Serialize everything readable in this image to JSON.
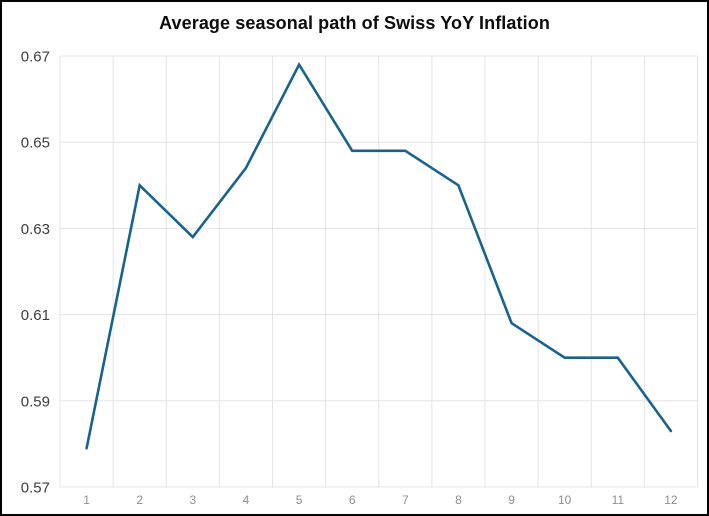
{
  "window": {
    "background": "#ffffff",
    "border_color": "#000000"
  },
  "chart_style": {
    "line_color": "#17638e",
    "grid_color": "#e4e4e4",
    "y_label_color": "#3d3d3d",
    "x_label_color": "#8f8f8f",
    "title_color": "#0d0d0d"
  },
  "chart_data": {
    "type": "line",
    "title": "Average seasonal path of Swiss YoY Inflation",
    "x": [
      1,
      2,
      3,
      4,
      5,
      6,
      7,
      8,
      9,
      10,
      11,
      12
    ],
    "xticklabels": [
      "1",
      "2",
      "3",
      "4",
      "5",
      "6",
      "7",
      "8",
      "9",
      "10",
      "11",
      "12"
    ],
    "values": [
      0.579,
      0.64,
      0.628,
      0.644,
      0.668,
      0.648,
      0.648,
      0.64,
      0.608,
      0.6,
      0.6,
      0.583
    ],
    "xlabel": "",
    "ylabel": "",
    "ylim": [
      0.57,
      0.67
    ],
    "yticks": [
      0.57,
      0.59,
      0.61,
      0.63,
      0.65,
      0.67
    ],
    "ytick_decimals": 2,
    "grid": true,
    "legend": false,
    "markers": false
  }
}
